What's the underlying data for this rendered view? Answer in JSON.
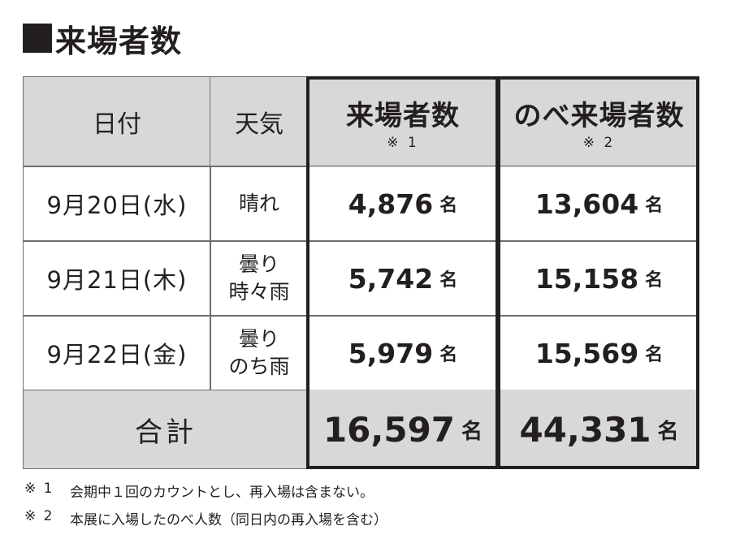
{
  "title": "来場者数",
  "table": {
    "headers": {
      "date": "日付",
      "weather": "天気",
      "visitors": "来場者数",
      "visitors_note": "※ 1",
      "total_visits": "のべ来場者数",
      "total_visits_note": "※ 2"
    },
    "rows": [
      {
        "date": "9月20日(水)",
        "weather_line1": "晴れ",
        "weather_line2": "",
        "visitors": "4,876",
        "total_visits": "13,604",
        "unit": "名"
      },
      {
        "date": "9月21日(木)",
        "weather_line1": "曇り",
        "weather_line2": "時々雨",
        "visitors": "5,742",
        "total_visits": "15,158",
        "unit": "名"
      },
      {
        "date": "9月22日(金)",
        "weather_line1": "曇り",
        "weather_line2": "のち雨",
        "visitors": "5,979",
        "total_visits": "15,569",
        "unit": "名"
      }
    ],
    "total": {
      "label": "合計",
      "visitors": "16,597",
      "total_visits": "44,331",
      "unit": "名"
    }
  },
  "footnotes": [
    {
      "mark": "※ 1",
      "text": "会期中１回のカウントとし、再入場は含まない。"
    },
    {
      "mark": "※ 2",
      "text": "本展に入場したのべ人数（同日内の再入場を含む）"
    }
  ],
  "colors": {
    "header_bg": "#d8d8d9",
    "text": "#231f20",
    "thin_border": "#6d6e71",
    "thick_border": "#231f20"
  }
}
